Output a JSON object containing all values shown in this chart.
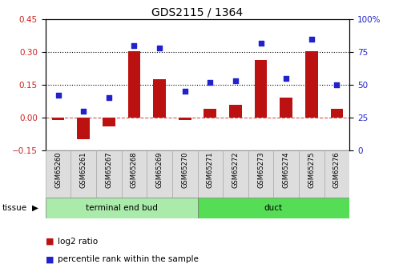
{
  "title": "GDS2115 / 1364",
  "samples": [
    "GSM65260",
    "GSM65261",
    "GSM65267",
    "GSM65268",
    "GSM65269",
    "GSM65270",
    "GSM65271",
    "GSM65272",
    "GSM65273",
    "GSM65274",
    "GSM65275",
    "GSM65276"
  ],
  "log2_ratio": [
    -0.01,
    -0.1,
    -0.04,
    0.305,
    0.175,
    -0.01,
    0.04,
    0.06,
    0.265,
    0.09,
    0.305,
    0.04
  ],
  "percentile_rank": [
    42,
    30,
    40,
    80,
    78,
    45,
    52,
    53,
    82,
    55,
    85,
    50
  ],
  "bar_color": "#bb1111",
  "dot_color": "#2222cc",
  "tissue_groups": [
    {
      "label": "terminal end bud",
      "start": 0,
      "end": 5,
      "color": "#aaeaaa"
    },
    {
      "label": "duct",
      "start": 6,
      "end": 11,
      "color": "#55dd55"
    }
  ],
  "ylim_left": [
    -0.15,
    0.45
  ],
  "ylim_right": [
    0,
    100
  ],
  "yticks_left": [
    -0.15,
    0.0,
    0.15,
    0.3,
    0.45
  ],
  "yticks_right": [
    0,
    25,
    50,
    75,
    100
  ],
  "hlines": [
    0.15,
    0.3
  ],
  "bg_color": "#ffffff",
  "plot_bg": "#ffffff",
  "legend_items": [
    {
      "label": "log2 ratio",
      "color": "#bb1111"
    },
    {
      "label": "percentile rank within the sample",
      "color": "#2222cc"
    }
  ],
  "tissue_label": "tissue",
  "ylabel_left_color": "#cc2222",
  "ylabel_right_color": "#2222cc",
  "sample_box_color": "#dddddd",
  "sample_box_edge": "#aaaaaa"
}
